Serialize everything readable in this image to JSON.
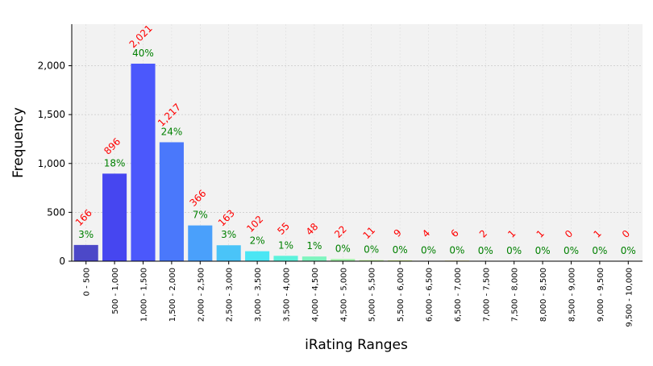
{
  "chart_data": {
    "type": "bar",
    "xlabel": "iRating Ranges",
    "ylabel": "Frequency",
    "ylim": [
      0,
      2425
    ],
    "yticks": [
      0,
      500,
      1000,
      1500,
      2000
    ],
    "ytick_labels": [
      "0",
      "500",
      "1,000",
      "1,500",
      "2,000"
    ],
    "grid": true,
    "categories": [
      "0 - 500",
      "500 - 1,000",
      "1,000 - 1,500",
      "1,500 - 2,000",
      "2,000 - 2,500",
      "2,500 - 3,000",
      "3,000 - 3,500",
      "3,500 - 4,000",
      "4,000 - 4,500",
      "4,500 - 5,000",
      "5,000 - 5,500",
      "5,500 - 6,000",
      "6,000 - 6,500",
      "6,500 - 7,000",
      "7,000 - 7,500",
      "7,500 - 8,000",
      "8,000 - 8,500",
      "8,500 - 9,000",
      "9,000 - 9,500",
      "9,500 - 10,000"
    ],
    "values": [
      166,
      896,
      2021,
      1217,
      366,
      163,
      102,
      55,
      48,
      22,
      11,
      9,
      4,
      6,
      2,
      1,
      1,
      0,
      1,
      0
    ],
    "value_labels": [
      "166",
      "896",
      "2,021",
      "1,217",
      "366",
      "163",
      "102",
      "55",
      "48",
      "22",
      "11",
      "9",
      "4",
      "6",
      "2",
      "1",
      "1",
      "0",
      "1",
      "0"
    ],
    "percent_labels": [
      "3%",
      "18%",
      "40%",
      "24%",
      "7%",
      "3%",
      "2%",
      "1%",
      "1%",
      "0%",
      "0%",
      "0%",
      "0%",
      "0%",
      "0%",
      "0%",
      "0%",
      "0%",
      "0%",
      "0%"
    ],
    "colors": [
      "#4c48c8",
      "#4646f0",
      "#4b58fc",
      "#4a78fb",
      "#4aa0fb",
      "#4ac4f8",
      "#4ae6f4",
      "#5cf2dc",
      "#7ff5bf",
      "#9ff2a5",
      "#baf290",
      "#d0f280",
      "#e0ef72",
      "#eee768",
      "#f6d860",
      "#f8c458",
      "#f8aa50",
      "#f88a48",
      "#f66840",
      "#f24838"
    ],
    "value_label_color": "#ff0000",
    "percent_label_color": "#008000",
    "plot_background": "#f2f2f2"
  }
}
